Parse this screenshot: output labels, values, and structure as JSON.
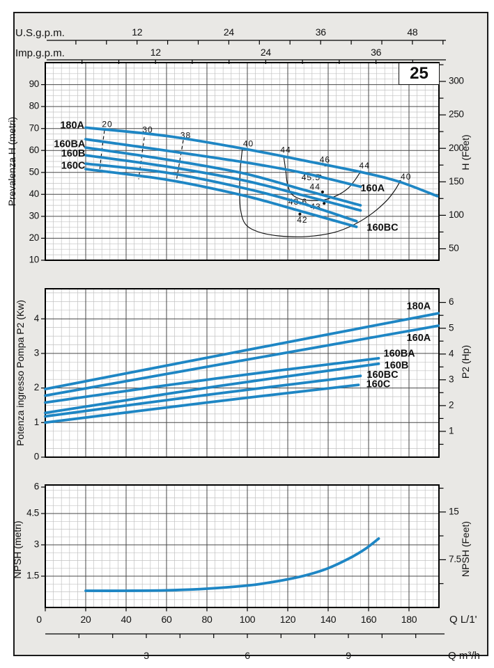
{
  "badge": "25",
  "colors": {
    "curve": "#1e86c4",
    "frame_bg": "#e9e8e5",
    "plot_bg": "#ffffff",
    "grid_minor": "#c2c2c2",
    "grid_major": "#474747",
    "border": "#000000",
    "contour": "#111111",
    "text": "#111111"
  },
  "top_scales": {
    "us_gpm": {
      "label": "U.S.g.p.m.",
      "labeled_ticks": [
        12,
        24,
        36,
        48
      ],
      "tick_step": 4,
      "lmin_per_unit": 3.785
    },
    "imp_gpm": {
      "label": "Imp.g.p.m.",
      "labeled_ticks": [
        12,
        24,
        36
      ],
      "tick_step": 4,
      "lmin_per_unit": 4.546
    }
  },
  "bottom_scales": {
    "lmin": {
      "label": "Q L/1'",
      "labeled_ticks": [
        0,
        20,
        40,
        60,
        80,
        100,
        120,
        140,
        160,
        180
      ]
    },
    "m3h": {
      "label": "Q m³/h",
      "labeled_ticks": [
        3,
        6,
        9
      ],
      "tick_step": 1,
      "lmin_per_unit": 16.667
    }
  },
  "chart_data": [
    {
      "id": "head",
      "type": "line",
      "title_left": "Prevalenza H (metri)",
      "title_right": "H (Feet)",
      "xlabel": "Q L/1'",
      "xlim": [
        0,
        194.8
      ],
      "ylim": [
        10,
        100.3
      ],
      "yticks_left": [
        10,
        20,
        30,
        40,
        50,
        60,
        70,
        80,
        90
      ],
      "yticks_right": {
        "values": [
          50,
          100,
          150,
          200,
          250,
          300
        ],
        "minor_step": 25,
        "to_main": 0.3048
      },
      "grid": {
        "x_major": 20,
        "x_minor": 4,
        "y_major": 10,
        "y_minor": 2.5
      },
      "series": [
        {
          "name": "180A",
          "points": [
            [
              20,
              70.4
            ],
            [
              60,
              66.6
            ],
            [
              97,
              61.0
            ],
            [
              127,
              55.6
            ],
            [
              156,
              50.2
            ],
            [
              175,
              45.8
            ],
            [
              194,
              39.2
            ]
          ],
          "label": {
            "q": 19.3,
            "v": 71.2,
            "anchor": "end"
          }
        },
        {
          "name": "160A",
          "points": [
            [
              20,
              65.1
            ],
            [
              60,
              59.9
            ],
            [
              98,
              54.7
            ],
            [
              127,
              49.9
            ],
            [
              156,
              43.5
            ]
          ],
          "label": {
            "q": 162,
            "v": 42.6,
            "anchor": "middle"
          }
        },
        {
          "name": "160BA",
          "points": [
            [
              20,
              61.3
            ],
            [
              60,
              55.9
            ],
            [
              98,
              49.6
            ],
            [
              127,
              42.3
            ],
            [
              156,
              35.0
            ]
          ],
          "label": {
            "q": 19.8,
            "v": 62.7,
            "anchor": "end"
          }
        },
        {
          "name": "160B",
          "points": [
            [
              20,
              57.8
            ],
            [
              60,
              52.7
            ],
            [
              98,
              46.4
            ],
            [
              127,
              39.7
            ],
            [
              156,
              32.7
            ]
          ],
          "label": {
            "q": 19.8,
            "v": 58.4,
            "anchor": "end"
          }
        },
        {
          "name": "160BC",
          "points": [
            [
              20,
              54.0
            ],
            [
              60,
              49.9
            ],
            [
              98,
              42.9
            ],
            [
              127,
              35.9
            ],
            [
              154,
              27.8
            ]
          ],
          "label": {
            "q": 166.9,
            "v": 24.7,
            "anchor": "middle"
          }
        },
        {
          "name": "160C",
          "points": [
            [
              20,
              51.5
            ],
            [
              60,
              46.7
            ],
            [
              98,
              39.5
            ],
            [
              127,
              32.2
            ],
            [
              154,
              25.2
            ]
          ],
          "label": {
            "q": 19.8,
            "v": 52.9,
            "anchor": "end"
          }
        }
      ],
      "contours": [
        {
          "label": "20",
          "label_at": [
            30.7,
            71.7
          ],
          "dashed": true,
          "points": [
            [
              29.3,
              69.2
            ],
            [
              28.0,
              60.0
            ],
            [
              26.9,
              50.5
            ]
          ]
        },
        {
          "label": "30",
          "label_at": [
            50.7,
            69.2
          ],
          "dashed": true,
          "points": [
            [
              49.0,
              66.0
            ],
            [
              47.5,
              56.0
            ],
            [
              46.2,
              46.9
            ]
          ]
        },
        {
          "label": "38",
          "label_at": [
            69.5,
            66.7
          ],
          "dashed": true,
          "points": [
            [
              68.3,
              64.7
            ],
            [
              66.5,
              55.0
            ],
            [
              64.8,
              45.8
            ]
          ]
        },
        {
          "label": "40",
          "label_at": [
            100.5,
            62.8
          ],
          "dashed": false,
          "points": [
            [
              97.6,
              61.3
            ],
            [
              96.6,
              52.4
            ],
            [
              96.2,
              42.9
            ],
            [
              96.6,
              33.4
            ],
            [
              99.0,
              26.5
            ],
            [
              105.2,
              23.0
            ],
            [
              115.5,
              21.1
            ],
            [
              129.3,
              20.8
            ],
            [
              143.1,
              22.7
            ],
            [
              153.4,
              26.5
            ],
            [
              162.0,
              31.5
            ],
            [
              169.0,
              37.2
            ],
            [
              173.1,
              42.0
            ],
            [
              175.5,
              45.8
            ]
          ]
        },
        {
          "label": "44",
          "label_at": [
            119.0,
            60.0
          ],
          "dashed": false,
          "points": [
            [
              117.9,
              57.8
            ],
            [
              119.0,
              50.8
            ],
            [
              119.7,
              45.4
            ],
            [
              121.4,
              40.7
            ],
            [
              125.2,
              38.2
            ],
            [
              131.0,
              37.2
            ],
            [
              137.9,
              37.5
            ],
            [
              144.8,
              39.7
            ],
            [
              150.0,
              42.9
            ],
            [
              153.4,
              46.7
            ],
            [
              155.9,
              50.2
            ]
          ]
        }
      ],
      "markers": [
        {
          "label": "44",
          "q": 155.9,
          "v": 50.2,
          "label_at": [
            158.0,
            52.8
          ]
        },
        {
          "label": "40",
          "q": 175.5,
          "v": 45.8,
          "label_at": [
            178.5,
            47.8
          ]
        },
        {
          "label": "46",
          "q": 138.6,
          "v": 53.4,
          "label_at": [
            138.4,
            55.6
          ]
        },
        {
          "label": "45.5",
          "q": 136.0,
          "v": 48.3,
          "label_at": [
            131.5,
            47.4
          ]
        },
        {
          "label": "44",
          "q": 137.2,
          "v": 41.1,
          "label_at": [
            133.5,
            43.1
          ]
        },
        {
          "label": "43.6",
          "q": 129.7,
          "v": 35.2,
          "label_at": [
            125.0,
            36.3
          ]
        },
        {
          "label": "43",
          "q": 138.0,
          "v": 35.9,
          "label_at": [
            133.8,
            34.2
          ]
        },
        {
          "label": "42",
          "q": 126.0,
          "v": 31.0,
          "label_at": [
            127.2,
            28.2
          ]
        }
      ]
    },
    {
      "id": "power",
      "type": "line",
      "title_left": "Potenza ingresso Pompa P2 (Kw)",
      "title_right": "P2 (Hp)",
      "xlabel": "Q L/1'",
      "xlim": [
        0,
        194.8
      ],
      "ylim": [
        0,
        4.87
      ],
      "yticks_left": [
        0,
        1,
        2,
        3,
        4
      ],
      "yticks_right": {
        "values": [
          1,
          2,
          3,
          4,
          5,
          6
        ],
        "minor_step": 0.5,
        "to_main": 0.7457
      },
      "grid": {
        "x_major": 20,
        "x_minor": 4,
        "y_major": 1,
        "y_minor": 0.25
      },
      "series": [
        {
          "name": "180A",
          "points": [
            [
              0,
              1.97
            ],
            [
              100,
              3.1
            ],
            [
              194.5,
              4.16
            ]
          ],
          "label": {
            "q": 184.8,
            "v": 4.35,
            "anchor": "middle"
          }
        },
        {
          "name": "160A",
          "points": [
            [
              0,
              1.78
            ],
            [
              100,
              2.82
            ],
            [
              194.5,
              3.8
            ]
          ],
          "label": {
            "q": 184.8,
            "v": 3.44,
            "anchor": "middle"
          }
        },
        {
          "name": "160BA",
          "points": [
            [
              0,
              1.58
            ],
            [
              85,
              2.28
            ],
            [
              165,
              2.86
            ]
          ],
          "label": {
            "q": 175.2,
            "v": 2.98,
            "anchor": "middle"
          }
        },
        {
          "name": "160B",
          "points": [
            [
              0,
              1.28
            ],
            [
              85,
              2.05
            ],
            [
              165,
              2.7
            ]
          ],
          "label": {
            "q": 173.8,
            "v": 2.64,
            "anchor": "middle"
          }
        },
        {
          "name": "160BC",
          "points": [
            [
              0,
              1.18
            ],
            [
              80,
              1.8
            ],
            [
              156,
              2.35
            ]
          ],
          "label": {
            "q": 166.9,
            "v": 2.37,
            "anchor": "middle"
          }
        },
        {
          "name": "160C",
          "points": [
            [
              0,
              1.0
            ],
            [
              80,
              1.58
            ],
            [
              155,
              2.09
            ]
          ],
          "label": {
            "q": 164.8,
            "v": 2.1,
            "anchor": "middle"
          }
        }
      ],
      "contours": [],
      "markers": []
    },
    {
      "id": "npsh",
      "type": "line",
      "title_left": "NPSH (metri)",
      "title_right": "NPSH (Feet)",
      "xlabel": "Q L/1'",
      "xlim": [
        0,
        194.8
      ],
      "ylim": [
        0,
        5.87
      ],
      "yticks_left": [
        1.5,
        3,
        4.5,
        6
      ],
      "yticks_right": {
        "values": [
          7.5,
          15
        ],
        "minor_step": 3.75,
        "to_main": 0.3048
      },
      "grid": {
        "x_major": 20,
        "x_minor": 4,
        "y_major": 1.5,
        "y_minor": 0.375
      },
      "series": [
        {
          "name": "NPSH",
          "points": [
            [
              20,
              0.8
            ],
            [
              40,
              0.8
            ],
            [
              60,
              0.82
            ],
            [
              80,
              0.9
            ],
            [
              100,
              1.05
            ],
            [
              110,
              1.18
            ],
            [
              120,
              1.35
            ],
            [
              130,
              1.57
            ],
            [
              140,
              1.88
            ],
            [
              150,
              2.33
            ],
            [
              158,
              2.78
            ],
            [
              165,
              3.3
            ]
          ],
          "label": null
        }
      ],
      "contours": [],
      "markers": []
    }
  ]
}
